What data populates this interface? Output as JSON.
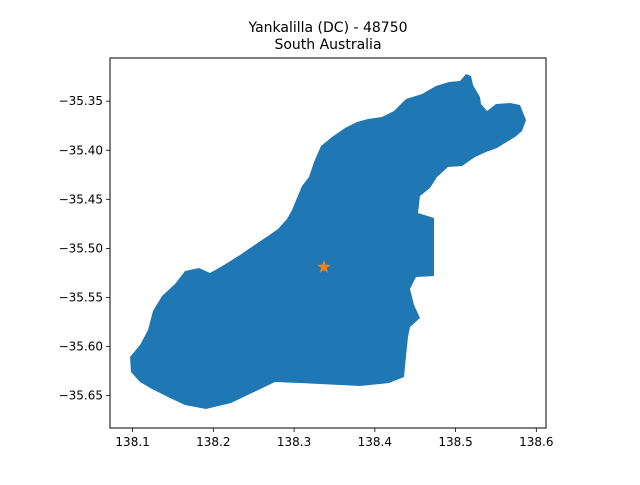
{
  "title": {
    "line1": "Yankalilla (DC) - 48750",
    "line2": "South Australia"
  },
  "map": {
    "region_color": "#1f77b4",
    "marker_color": "#ff7f0e",
    "marker_icon": "star-icon",
    "marker_point": {
      "lon": 138.337,
      "lat": -35.519
    }
  },
  "chart_data": {
    "type": "map",
    "title": "Yankalilla (DC) - 48750\nSouth Australia",
    "xlim": [
      138.072,
      138.612
    ],
    "ylim": [
      -35.683,
      -35.306
    ],
    "xticks": [
      "138.1",
      "138.2",
      "138.3",
      "138.4",
      "138.5",
      "138.6"
    ],
    "yticks": [
      "−35.35",
      "−35.40",
      "−35.45",
      "−35.50",
      "−35.55",
      "−35.60",
      "−35.65"
    ],
    "marker": {
      "lon": 138.337,
      "lat": -35.519
    }
  }
}
